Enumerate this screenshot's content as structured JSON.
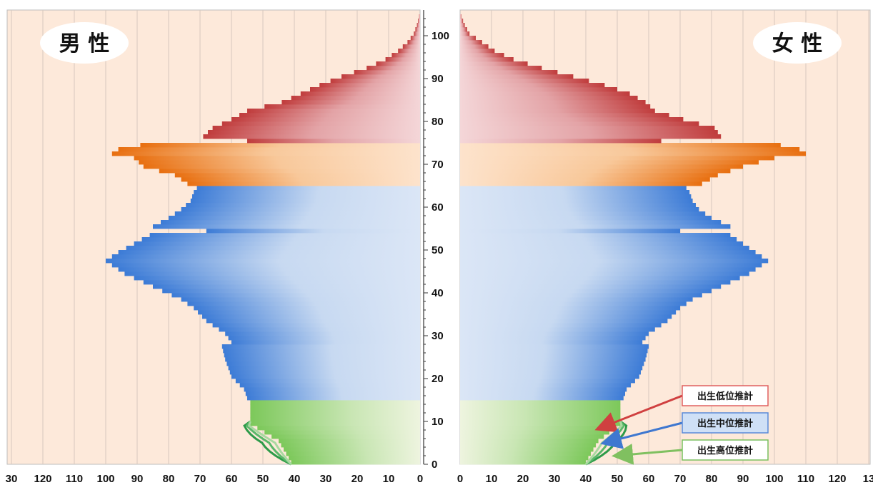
{
  "chart_data": {
    "type": "bar",
    "subtype": "population-pyramid",
    "panels": [
      {
        "side": "left",
        "title": "男 性",
        "xlim": [
          130,
          0
        ]
      },
      {
        "side": "right",
        "title": "女 性",
        "xlim": [
          0,
          130
        ]
      }
    ],
    "x_ticks": {
      "left": [
        "30",
        "120",
        "110",
        "100",
        "90",
        "80",
        "70",
        "60",
        "50",
        "40",
        "30",
        "20",
        "10",
        "0"
      ],
      "right": [
        "0",
        "10",
        "20",
        "30",
        "40",
        "50",
        "60",
        "70",
        "80",
        "90",
        "100",
        "110",
        "120",
        "13"
      ]
    },
    "y_ticks": [
      "0",
      "10",
      "20",
      "30",
      "40",
      "50",
      "60",
      "70",
      "80",
      "90",
      "100"
    ],
    "ylim": [
      0,
      105
    ],
    "age_groups": [
      {
        "range": [
          0,
          14
        ],
        "color": "#8cd070"
      },
      {
        "range": [
          15,
          64
        ],
        "color": "#4f87d8"
      },
      {
        "range": [
          65,
          74
        ],
        "color": "#ea7a1a"
      },
      {
        "range": [
          75,
          105
        ],
        "color": "#c44a48"
      }
    ],
    "legend": [
      {
        "label": "出生低位推計",
        "border": "#e06060",
        "fill": "#ffffff",
        "arrow": "#d04040"
      },
      {
        "label": "出生中位推計",
        "border": "#5b8ad8",
        "fill": "#cfe0f6",
        "arrow": "#3f78d0"
      },
      {
        "label": "出生高位推計",
        "border": "#7ac060",
        "fill": "#ffffff",
        "arrow": "#80c060"
      }
    ],
    "male": [
      {
        "age": 0,
        "value": 41
      },
      {
        "age": 5,
        "value": 45
      },
      {
        "age": 9,
        "value": 54
      },
      {
        "age": 10,
        "value": 54
      },
      {
        "age": 14,
        "value": 54
      },
      {
        "age": 15,
        "value": 55
      },
      {
        "age": 17,
        "value": 56
      },
      {
        "age": 20,
        "value": 60
      },
      {
        "age": 24,
        "value": 62
      },
      {
        "age": 27,
        "value": 63
      },
      {
        "age": 28,
        "value": 60
      },
      {
        "age": 30,
        "value": 62
      },
      {
        "age": 33,
        "value": 68
      },
      {
        "age": 36,
        "value": 72
      },
      {
        "age": 38,
        "value": 76
      },
      {
        "age": 40,
        "value": 82
      },
      {
        "age": 42,
        "value": 88
      },
      {
        "age": 44,
        "value": 94
      },
      {
        "age": 46,
        "value": 98
      },
      {
        "age": 47,
        "value": 100
      },
      {
        "age": 49,
        "value": 96
      },
      {
        "age": 51,
        "value": 91
      },
      {
        "age": 53,
        "value": 86
      },
      {
        "age": 54,
        "value": 68
      },
      {
        "age": 55,
        "value": 85
      },
      {
        "age": 57,
        "value": 80
      },
      {
        "age": 59,
        "value": 76
      },
      {
        "age": 61,
        "value": 73
      },
      {
        "age": 63,
        "value": 72
      },
      {
        "age": 64,
        "value": 71
      },
      {
        "age": 65,
        "value": 74
      },
      {
        "age": 67,
        "value": 78
      },
      {
        "age": 69,
        "value": 88
      },
      {
        "age": 71,
        "value": 91
      },
      {
        "age": 72,
        "value": 98
      },
      {
        "age": 73,
        "value": 96
      },
      {
        "age": 74,
        "value": 89
      },
      {
        "age": 75,
        "value": 55
      },
      {
        "age": 76,
        "value": 69
      },
      {
        "age": 78,
        "value": 66
      },
      {
        "age": 80,
        "value": 60
      },
      {
        "age": 82,
        "value": 55
      },
      {
        "age": 84,
        "value": 44
      },
      {
        "age": 86,
        "value": 38
      },
      {
        "age": 88,
        "value": 32
      },
      {
        "age": 90,
        "value": 25
      },
      {
        "age": 92,
        "value": 17
      },
      {
        "age": 94,
        "value": 11
      },
      {
        "age": 96,
        "value": 7
      },
      {
        "age": 98,
        "value": 4
      },
      {
        "age": 100,
        "value": 2
      },
      {
        "age": 102,
        "value": 1
      },
      {
        "age": 104,
        "value": 0.3
      }
    ],
    "female": [
      {
        "age": 0,
        "value": 40
      },
      {
        "age": 5,
        "value": 44
      },
      {
        "age": 9,
        "value": 51
      },
      {
        "age": 10,
        "value": 51
      },
      {
        "age": 14,
        "value": 51
      },
      {
        "age": 15,
        "value": 52
      },
      {
        "age": 17,
        "value": 53
      },
      {
        "age": 20,
        "value": 57
      },
      {
        "age": 24,
        "value": 59
      },
      {
        "age": 27,
        "value": 60
      },
      {
        "age": 28,
        "value": 58
      },
      {
        "age": 30,
        "value": 60
      },
      {
        "age": 33,
        "value": 66
      },
      {
        "age": 36,
        "value": 70
      },
      {
        "age": 38,
        "value": 74
      },
      {
        "age": 40,
        "value": 80
      },
      {
        "age": 42,
        "value": 86
      },
      {
        "age": 44,
        "value": 92
      },
      {
        "age": 46,
        "value": 96
      },
      {
        "age": 47,
        "value": 98
      },
      {
        "age": 49,
        "value": 94
      },
      {
        "age": 51,
        "value": 90
      },
      {
        "age": 53,
        "value": 86
      },
      {
        "age": 54,
        "value": 70
      },
      {
        "age": 55,
        "value": 86
      },
      {
        "age": 57,
        "value": 80
      },
      {
        "age": 59,
        "value": 76
      },
      {
        "age": 61,
        "value": 74
      },
      {
        "age": 63,
        "value": 73
      },
      {
        "age": 64,
        "value": 72
      },
      {
        "age": 65,
        "value": 77
      },
      {
        "age": 67,
        "value": 82
      },
      {
        "age": 69,
        "value": 90
      },
      {
        "age": 71,
        "value": 100
      },
      {
        "age": 72,
        "value": 110
      },
      {
        "age": 73,
        "value": 108
      },
      {
        "age": 74,
        "value": 102
      },
      {
        "age": 75,
        "value": 64
      },
      {
        "age": 76,
        "value": 83
      },
      {
        "age": 78,
        "value": 81
      },
      {
        "age": 80,
        "value": 71
      },
      {
        "age": 82,
        "value": 62
      },
      {
        "age": 84,
        "value": 59
      },
      {
        "age": 86,
        "value": 54
      },
      {
        "age": 88,
        "value": 46
      },
      {
        "age": 90,
        "value": 36
      },
      {
        "age": 92,
        "value": 26
      },
      {
        "age": 94,
        "value": 17
      },
      {
        "age": 96,
        "value": 11
      },
      {
        "age": 98,
        "value": 7
      },
      {
        "age": 100,
        "value": 3
      },
      {
        "age": 102,
        "value": 1.5
      },
      {
        "age": 104,
        "value": 0.4
      }
    ]
  }
}
